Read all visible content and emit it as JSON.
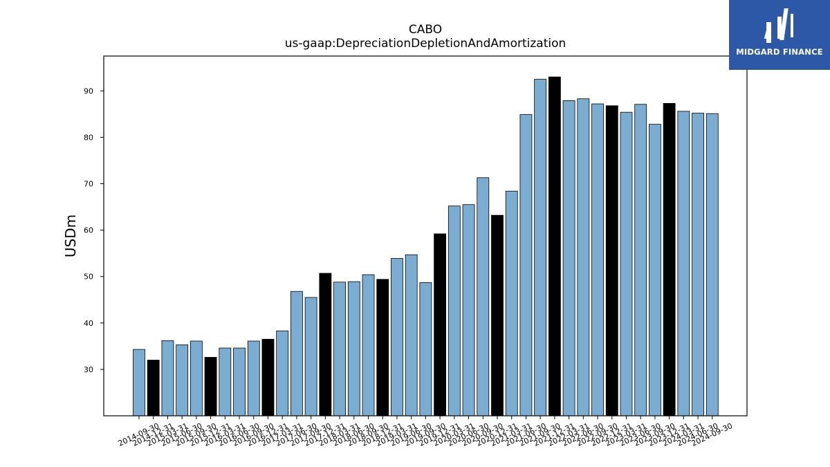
{
  "chart_data": {
    "type": "bar",
    "title": "CABO",
    "subtitle": "us-gaap:DepreciationDepletionAndAmortization",
    "xlabel": "",
    "ylabel": "USDm",
    "ylim": [
      20,
      97.5
    ],
    "yticks": [
      30,
      40,
      50,
      60,
      70,
      80,
      90
    ],
    "grid": false,
    "colors": {
      "quarter": "#7badd2",
      "year_end": "#000000",
      "edge": "#000000"
    },
    "categories": [
      "2014-09-30",
      "2014-12-31",
      "2015-03-31",
      "2015-06-30",
      "2015-09-30",
      "2015-12-31",
      "2016-03-31",
      "2016-06-30",
      "2016-09-30",
      "2016-12-31",
      "2017-03-31",
      "2017-06-30",
      "2017-09-30",
      "2017-12-31",
      "2018-03-31",
      "2018-06-30",
      "2018-09-30",
      "2018-12-31",
      "2019-03-31",
      "2019-06-30",
      "2019-09-30",
      "2019-12-31",
      "2020-03-31",
      "2020-06-30",
      "2020-09-30",
      "2020-12-31",
      "2021-03-31",
      "2021-06-30",
      "2021-09-30",
      "2021-12-31",
      "2022-03-31",
      "2022-06-30",
      "2022-09-30",
      "2022-12-31",
      "2023-03-31",
      "2023-06-30",
      "2023-09-30",
      "2023-12-31",
      "2024-03-31",
      "2024-06-30",
      "2024-09-30"
    ],
    "values": [
      34.3,
      32.0,
      36.2,
      35.3,
      36.1,
      32.6,
      34.6,
      34.6,
      36.1,
      36.5,
      38.3,
      46.8,
      45.5,
      50.7,
      48.8,
      48.9,
      50.4,
      49.4,
      53.9,
      54.7,
      48.7,
      59.2,
      65.2,
      65.5,
      71.3,
      63.2,
      68.4,
      84.9,
      92.5,
      93.0,
      87.9,
      88.3,
      87.2,
      86.8,
      85.4,
      87.1,
      82.8,
      87.3,
      85.6,
      85.2,
      85.1
    ]
  },
  "logo": {
    "text": "MIDGARD FINANCE",
    "background": "#2d58a8"
  }
}
